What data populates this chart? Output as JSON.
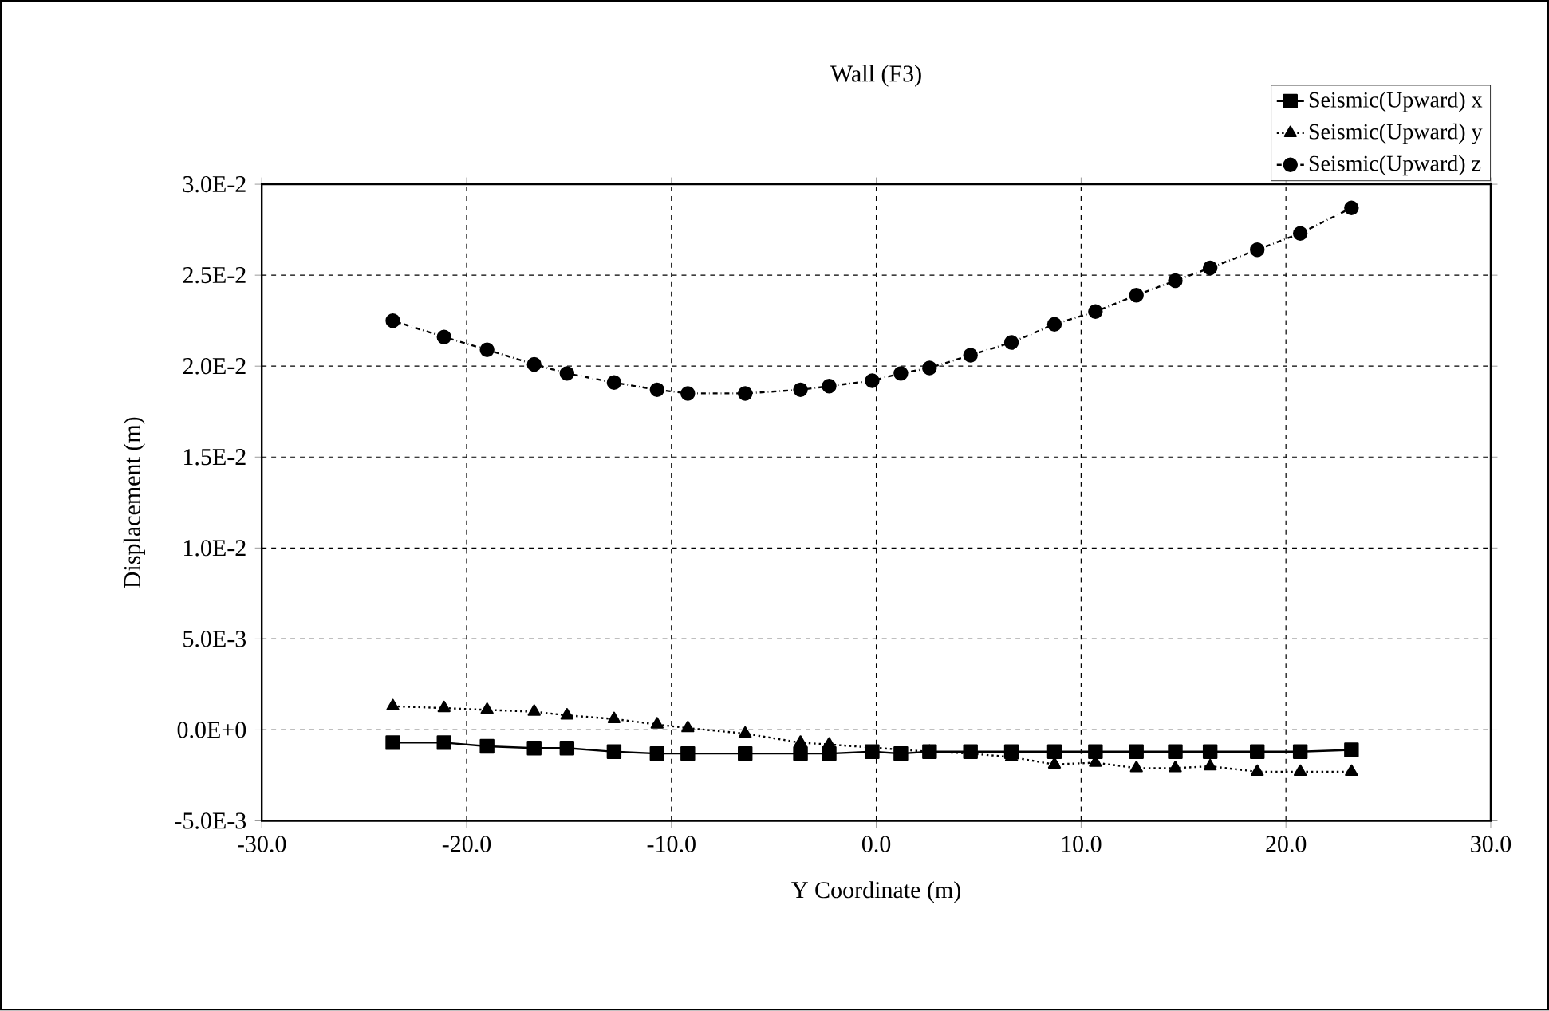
{
  "chart_data": {
    "type": "line",
    "title": "Wall (F3)",
    "xlabel": "Y Coordinate (m)",
    "ylabel": "Displacement (m)",
    "xlim": [
      -30,
      30
    ],
    "ylim": [
      -0.005,
      0.03
    ],
    "xticks": [
      {
        "value": -30,
        "label": "-30.0"
      },
      {
        "value": -20,
        "label": "-20.0"
      },
      {
        "value": -10,
        "label": "-10.0"
      },
      {
        "value": 0,
        "label": "0.0"
      },
      {
        "value": 10,
        "label": "10.0"
      },
      {
        "value": 20,
        "label": "20.0"
      },
      {
        "value": 30,
        "label": "30.0"
      }
    ],
    "yticks": [
      {
        "value": -0.005,
        "label": "-5.0E-3"
      },
      {
        "value": 0,
        "label": "0.0E+0"
      },
      {
        "value": 0.005,
        "label": "5.0E-3"
      },
      {
        "value": 0.01,
        "label": "1.0E-2"
      },
      {
        "value": 0.015,
        "label": "1.5E-2"
      },
      {
        "value": 0.02,
        "label": "2.0E-2"
      },
      {
        "value": 0.025,
        "label": "2.5E-2"
      },
      {
        "value": 0.03,
        "label": "3.0E-2"
      }
    ],
    "grid": true,
    "legend": "top right",
    "x": [
      -23.6,
      -21.1,
      -19.0,
      -16.7,
      -15.1,
      -12.8,
      -10.7,
      -9.2,
      -6.4,
      -3.7,
      -2.3,
      -0.2,
      1.2,
      2.6,
      4.6,
      6.6,
      8.7,
      10.7,
      12.7,
      14.6,
      16.3,
      18.6,
      20.7,
      23.2
    ],
    "series": [
      {
        "name": "Seismic(Upward) x",
        "color": "#000000",
        "marker": "square",
        "line_style": "solid",
        "values": [
          -0.0007,
          -0.0007,
          -0.0009,
          -0.001,
          -0.001,
          -0.0012,
          -0.0013,
          -0.0013,
          -0.0013,
          -0.0013,
          -0.0013,
          -0.0012,
          -0.0013,
          -0.0012,
          -0.0012,
          -0.0012,
          -0.0012,
          -0.0012,
          -0.0012,
          -0.0012,
          -0.0012,
          -0.0012,
          -0.0012,
          -0.0011
        ]
      },
      {
        "name": "Seismic(Upward) y",
        "color": "#000000",
        "marker": "triangle",
        "line_style": "dotted",
        "values": [
          0.0013,
          0.0012,
          0.0011,
          0.001,
          0.0008,
          0.0006,
          0.0003,
          0.0001,
          -0.0002,
          -0.0007,
          -0.0008,
          null,
          null,
          -0.0012,
          -0.0013,
          -0.0015,
          -0.0019,
          -0.0018,
          -0.0021,
          -0.0021,
          -0.002,
          -0.0023,
          -0.0023,
          -0.0023
        ]
      },
      {
        "name": "Seismic(Upward) z",
        "color": "#000000",
        "marker": "circle",
        "line_style": "dashdotted",
        "values": [
          0.0225,
          0.0216,
          0.0209,
          0.0201,
          0.0196,
          0.0191,
          0.0187,
          0.0185,
          0.0185,
          0.0187,
          0.0189,
          0.0192,
          0.0196,
          0.0199,
          0.0206,
          0.0213,
          0.0223,
          0.023,
          0.0239,
          0.0247,
          0.0254,
          0.0264,
          0.0273,
          0.0287
        ]
      }
    ]
  }
}
